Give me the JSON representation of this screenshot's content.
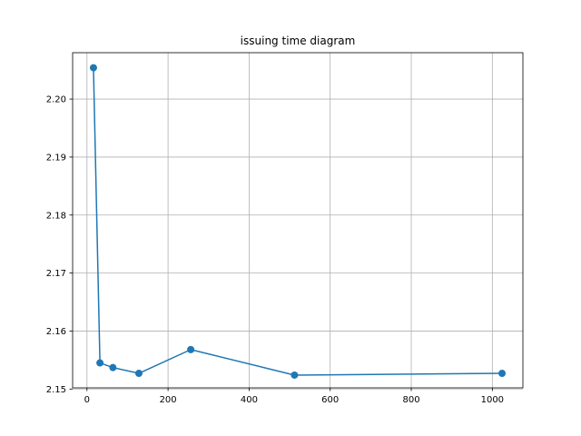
{
  "chart_data": {
    "type": "line",
    "title": "issuing time diagram",
    "xlabel": "",
    "ylabel": "",
    "x": [
      16,
      32,
      64,
      128,
      256,
      512,
      1024
    ],
    "series": [
      {
        "values": [
          2.2054,
          2.1545,
          2.1537,
          2.1527,
          2.1568,
          2.1524,
          2.1527
        ],
        "color": "#1f77b4",
        "marker": "circle"
      }
    ],
    "xlim": [
      -35.4,
      1075.4
    ],
    "ylim": [
      2.1502,
      2.208
    ],
    "xticks": [
      0,
      200,
      400,
      600,
      800,
      1000
    ],
    "xtick_labels": [
      "0",
      "200",
      "400",
      "600",
      "800",
      "1000"
    ],
    "yticks": [
      2.15,
      2.16,
      2.17,
      2.18,
      2.19,
      2.2
    ],
    "ytick_labels": [
      "2.15",
      "2.16",
      "2.17",
      "2.18",
      "2.19",
      "2.20"
    ],
    "grid": true,
    "legend": false
  }
}
